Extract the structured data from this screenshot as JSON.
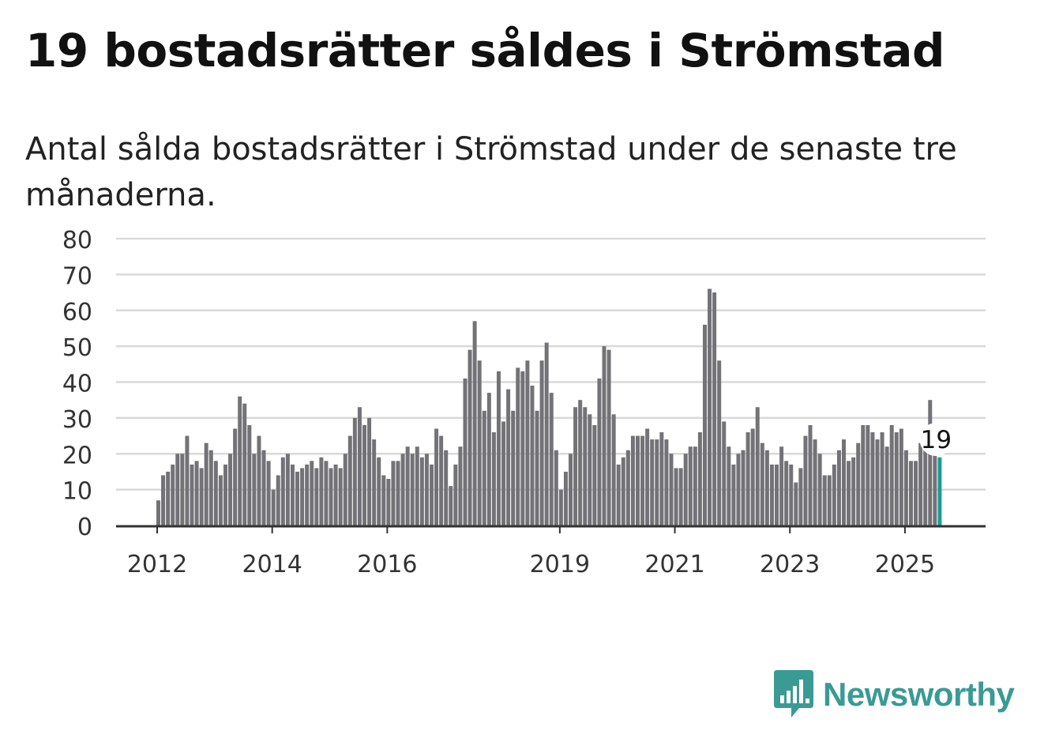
{
  "title": "19 bostadsrätter såldes i Strömstad",
  "subtitle": "Antal sålda bostadsrätter i Strömstad under de senaste tre månaderna.",
  "brand": {
    "name": "Newsworthy",
    "color": "#3a9a94",
    "icon": "newsworthy-logo-icon"
  },
  "colors": {
    "bar": "#737277",
    "highlight": "#1a9e96",
    "grid": "#d9d9d9",
    "axis": "#333333"
  },
  "chart_data": {
    "type": "bar",
    "title": "19 bostadsrätter såldes i Strömstad",
    "ylim": [
      0,
      80
    ],
    "yticks": [
      0,
      10,
      20,
      30,
      40,
      50,
      60,
      70,
      80
    ],
    "grid": true,
    "start": "2012-01",
    "xtick_labels": [
      "2012",
      "2014",
      "2016",
      "2019",
      "2021",
      "2023",
      "2025"
    ],
    "xtick_months": [
      "2012-01",
      "2014-01",
      "2016-01",
      "2019-01",
      "2021-01",
      "2023-01",
      "2025-01"
    ],
    "values": [
      7,
      14,
      15,
      17,
      20,
      20,
      25,
      17,
      18,
      16,
      23,
      21,
      18,
      14,
      17,
      20,
      27,
      36,
      34,
      28,
      20,
      25,
      21,
      18,
      10,
      14,
      19,
      20,
      17,
      15,
      16,
      17,
      18,
      16,
      19,
      18,
      16,
      17,
      16,
      20,
      25,
      30,
      33,
      28,
      30,
      24,
      19,
      14,
      13,
      18,
      18,
      20,
      22,
      20,
      22,
      19,
      20,
      17,
      27,
      25,
      21,
      11,
      17,
      22,
      41,
      49,
      57,
      46,
      32,
      37,
      26,
      43,
      29,
      38,
      32,
      44,
      43,
      46,
      39,
      32,
      46,
      51,
      37,
      21,
      10,
      15,
      20,
      33,
      35,
      33,
      31,
      28,
      41,
      50,
      49,
      31,
      17,
      19,
      21,
      25,
      25,
      25,
      27,
      24,
      24,
      26,
      24,
      20,
      16,
      16,
      20,
      22,
      22,
      26,
      56,
      66,
      65,
      46,
      29,
      22,
      17,
      20,
      21,
      26,
      27,
      33,
      23,
      21,
      17,
      17,
      22,
      18,
      17,
      12,
      16,
      25,
      28,
      24,
      20,
      14,
      14,
      17,
      21,
      24,
      18,
      19,
      23,
      28,
      28,
      26,
      24,
      26,
      22,
      28,
      26,
      27,
      21,
      18,
      18,
      23,
      25,
      35,
      23,
      19
    ],
    "highlight_index": 163,
    "highlight_label": "19"
  }
}
